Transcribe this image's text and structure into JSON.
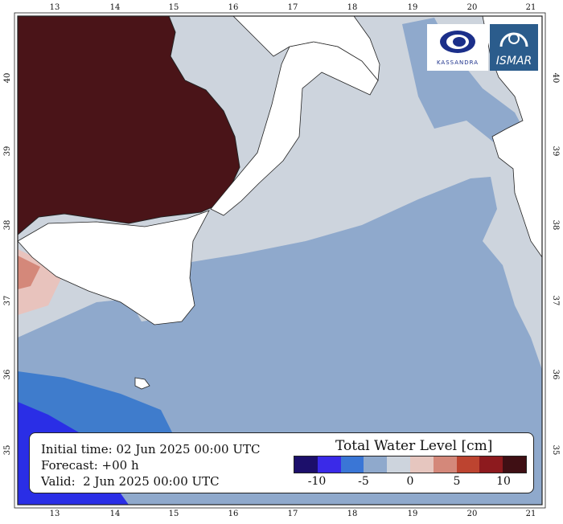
{
  "map": {
    "lon_ticks": [
      "13",
      "14",
      "15",
      "16",
      "17",
      "18",
      "19",
      "20",
      "21"
    ],
    "lat_ticks": [
      "40",
      "39",
      "38",
      "37",
      "36",
      "35"
    ],
    "colors": {
      "sea_light": "#cdd4dd",
      "sea_mid": "#8fa9cc",
      "sea_blue": "#3f7ccc",
      "sea_deep": "#2a2ee6",
      "land": "#ffffff",
      "italy_land": "#4a1418",
      "coast_pink": "#e8c3bd"
    }
  },
  "logos": [
    {
      "name": "kassandra-logo",
      "text": "KASSANDRA"
    },
    {
      "name": "ismar-logo",
      "text": "ISMAR"
    }
  ],
  "legend": {
    "initial_time": "Initial time: 02 Jun 2025 00:00 UTC",
    "forecast": "Forecast: +00 h",
    "valid": "Valid:  2 Jun 2025 00:00 UTC",
    "colorbar_title": "Total Water Level [cm]",
    "colorbar_colors": [
      "#1c0f6b",
      "#3a2ae8",
      "#3a76d6",
      "#8fa9cc",
      "#cdd4dd",
      "#e6c6bf",
      "#d4887a",
      "#bd4430",
      "#8d1a1e",
      "#3f0f14"
    ],
    "colorbar_ticks": [
      "-10",
      "-5",
      "0",
      "5",
      "10"
    ],
    "colorbar_tick_values": [
      -10,
      -5,
      0,
      5,
      10
    ],
    "colorbar_range": [
      -12.5,
      12.5
    ]
  }
}
